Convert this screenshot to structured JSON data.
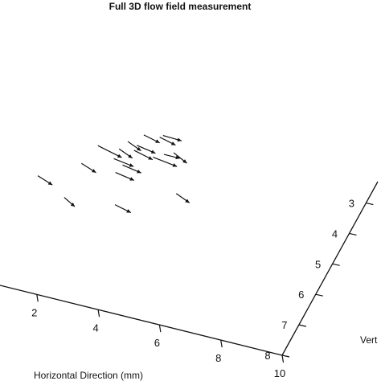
{
  "chart_data": {
    "type": "vector_field_3d",
    "title": "Full 3D flow field measurement",
    "xlabel": "Horizontal Direction (mm)",
    "ylabel": "Vert",
    "x_ticks": [
      2,
      4,
      6,
      8,
      10
    ],
    "y_ticks": [
      3,
      4,
      5,
      6,
      7,
      8
    ],
    "grid": false,
    "legend": "none",
    "colors": {
      "arrows": "#111111",
      "axes": "#111111",
      "background": "#ffffff"
    },
    "vectors": [
      {
        "x": 0.8,
        "y": 2.5,
        "z": 3.0,
        "u": 0.55,
        "v": 0.35
      },
      {
        "x": 3.5,
        "y": 3.0,
        "z": 3.0,
        "u": 0.55,
        "v": 0.35
      },
      {
        "x": 4.8,
        "y": 2.2,
        "z": 3.0,
        "u": 0.9,
        "v": 0.45
      },
      {
        "x": 6.0,
        "y": 2.4,
        "z": 2.6,
        "u": 0.5,
        "v": 0.35
      },
      {
        "x": 6.6,
        "y": 2.5,
        "z": 2.8,
        "u": 0.5,
        "v": 0.35
      },
      {
        "x": 6.8,
        "y": 3.0,
        "z": 2.6,
        "u": 0.7,
        "v": 0.35
      },
      {
        "x": 5.4,
        "y": 3.7,
        "z": 3.0,
        "u": 0.75,
        "v": 0.3
      },
      {
        "x": 5.8,
        "y": 4.1,
        "z": 2.8,
        "u": 0.7,
        "v": 0.3
      },
      {
        "x": 7.8,
        "y": 3.4,
        "z": 2.2,
        "u": 0.9,
        "v": 0.35
      },
      {
        "x": 5.2,
        "y": 4.8,
        "z": 3.0,
        "u": 0.7,
        "v": 0.3
      },
      {
        "x": 8.4,
        "y": 4.1,
        "z": 2.5,
        "u": 0.6,
        "v": 0.15
      },
      {
        "x": 9.0,
        "y": 4.1,
        "z": 2.4,
        "u": 0.5,
        "v": 0.4
      },
      {
        "x": 1.8,
        "y": 5.0,
        "z": 3.0,
        "u": 0.4,
        "v": 0.35
      },
      {
        "x": 4.6,
        "y": 6.1,
        "z": 2.4,
        "u": 0.6,
        "v": 0.3
      },
      {
        "x": 8.3,
        "y": 6.9,
        "z": 2.2,
        "u": 0.5,
        "v": 0.35
      },
      {
        "x": 7.2,
        "y": 1.6,
        "z": 2.0,
        "u": 0.7,
        "v": 0.3
      },
      {
        "x": 8.6,
        "y": 2.1,
        "z": 2.2,
        "u": 0.6,
        "v": 0.3
      },
      {
        "x": 7.9,
        "y": 0.3,
        "z": 1.6,
        "u": 0.6,
        "v": 0.3
      },
      {
        "x": 9.0,
        "y": 0.6,
        "z": 1.4,
        "u": 0.7,
        "v": 0.2
      }
    ]
  }
}
